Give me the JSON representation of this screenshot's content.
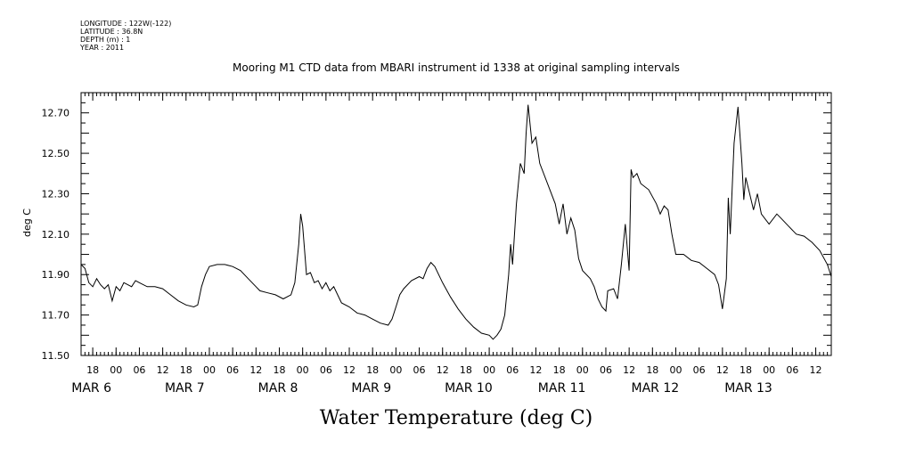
{
  "meta_lines": [
    "LONGITUDE : 122W(-122)",
    "LATITUDE : 36.8N",
    "DEPTH (m) : 1",
    "YEAR : 2011"
  ],
  "chart_data": {
    "type": "line",
    "title": "Mooring M1 CTD data from MBARI instrument id 1338 at original sampling intervals",
    "xlabel": "Water Temperature (deg C)",
    "ylabel": "deg C",
    "xlim": [
      "2011-03-05T15:00",
      "2011-03-13T16:00"
    ],
    "ylim": [
      11.5,
      12.8
    ],
    "yticks": [
      11.5,
      11.7,
      11.9,
      12.1,
      12.3,
      12.5,
      12.7
    ],
    "ytick_labels": [
      "11.50",
      "11.70",
      "11.90",
      "12.10",
      "12.30",
      "12.50",
      "12.70"
    ],
    "hour_ticks": [
      {
        "t": "2011-03-05T18:00",
        "label": "18"
      },
      {
        "t": "2011-03-06T00:00",
        "label": "00"
      },
      {
        "t": "2011-03-06T06:00",
        "label": "06"
      },
      {
        "t": "2011-03-06T12:00",
        "label": "12"
      },
      {
        "t": "2011-03-06T18:00",
        "label": "18"
      },
      {
        "t": "2011-03-07T00:00",
        "label": "00"
      },
      {
        "t": "2011-03-07T06:00",
        "label": "06"
      },
      {
        "t": "2011-03-07T12:00",
        "label": "12"
      },
      {
        "t": "2011-03-07T18:00",
        "label": "18"
      },
      {
        "t": "2011-03-08T00:00",
        "label": "00"
      },
      {
        "t": "2011-03-08T06:00",
        "label": "06"
      },
      {
        "t": "2011-03-08T12:00",
        "label": "12"
      },
      {
        "t": "2011-03-08T18:00",
        "label": "18"
      },
      {
        "t": "2011-03-09T00:00",
        "label": "00"
      },
      {
        "t": "2011-03-09T06:00",
        "label": "06"
      },
      {
        "t": "2011-03-09T12:00",
        "label": "12"
      },
      {
        "t": "2011-03-09T18:00",
        "label": "18"
      },
      {
        "t": "2011-03-10T00:00",
        "label": "00"
      },
      {
        "t": "2011-03-10T06:00",
        "label": "06"
      },
      {
        "t": "2011-03-10T12:00",
        "label": "12"
      },
      {
        "t": "2011-03-10T18:00",
        "label": "18"
      },
      {
        "t": "2011-03-11T00:00",
        "label": "00"
      },
      {
        "t": "2011-03-11T06:00",
        "label": "06"
      },
      {
        "t": "2011-03-11T12:00",
        "label": "12"
      },
      {
        "t": "2011-03-11T18:00",
        "label": "18"
      },
      {
        "t": "2011-03-12T00:00",
        "label": "00"
      },
      {
        "t": "2011-03-12T06:00",
        "label": "06"
      },
      {
        "t": "2011-03-12T12:00",
        "label": "12"
      },
      {
        "t": "2011-03-12T18:00",
        "label": "18"
      },
      {
        "t": "2011-03-13T00:00",
        "label": "00"
      },
      {
        "t": "2011-03-13T06:00",
        "label": "06"
      },
      {
        "t": "2011-03-13T12:00",
        "label": "12"
      }
    ],
    "day_labels": [
      {
        "t": "2011-03-06T00:00",
        "label": "MAR   6"
      },
      {
        "t": "2011-03-07T00:00",
        "label": "MAR   7"
      },
      {
        "t": "2011-03-08T00:00",
        "label": "MAR   8"
      },
      {
        "t": "2011-03-09T00:00",
        "label": "MAR   9"
      },
      {
        "t": "2011-03-10T00:00",
        "label": "MAR 10"
      },
      {
        "t": "2011-03-11T00:00",
        "label": "MAR 11"
      },
      {
        "t": "2011-03-12T00:00",
        "label": "MAR 12"
      },
      {
        "t": "2011-03-13T00:00",
        "label": "MAR 13"
      }
    ],
    "series": [
      {
        "points": [
          [
            "2011-03-05T15:00",
            11.95
          ],
          [
            "2011-03-05T16:00",
            11.93
          ],
          [
            "2011-03-05T17:00",
            11.86
          ],
          [
            "2011-03-05T18:00",
            11.84
          ],
          [
            "2011-03-05T19:00",
            11.88
          ],
          [
            "2011-03-05T20:00",
            11.85
          ],
          [
            "2011-03-05T21:00",
            11.83
          ],
          [
            "2011-03-05T22:00",
            11.85
          ],
          [
            "2011-03-05T23:00",
            11.77
          ],
          [
            "2011-03-06T00:00",
            11.84
          ],
          [
            "2011-03-06T01:00",
            11.82
          ],
          [
            "2011-03-06T02:00",
            11.86
          ],
          [
            "2011-03-06T03:00",
            11.85
          ],
          [
            "2011-03-06T04:00",
            11.84
          ],
          [
            "2011-03-06T05:00",
            11.87
          ],
          [
            "2011-03-06T06:00",
            11.86
          ],
          [
            "2011-03-06T08:00",
            11.84
          ],
          [
            "2011-03-06T10:00",
            11.84
          ],
          [
            "2011-03-06T12:00",
            11.83
          ],
          [
            "2011-03-06T14:00",
            11.8
          ],
          [
            "2011-03-06T16:00",
            11.77
          ],
          [
            "2011-03-06T18:00",
            11.75
          ],
          [
            "2011-03-06T20:00",
            11.74
          ],
          [
            "2011-03-06T21:00",
            11.75
          ],
          [
            "2011-03-06T22:00",
            11.84
          ],
          [
            "2011-03-06T23:00",
            11.9
          ],
          [
            "2011-03-07T00:00",
            11.94
          ],
          [
            "2011-03-07T02:00",
            11.95
          ],
          [
            "2011-03-07T04:00",
            11.95
          ],
          [
            "2011-03-07T06:00",
            11.94
          ],
          [
            "2011-03-07T08:00",
            11.92
          ],
          [
            "2011-03-07T10:00",
            11.88
          ],
          [
            "2011-03-07T12:00",
            11.84
          ],
          [
            "2011-03-07T13:00",
            11.82
          ],
          [
            "2011-03-07T15:00",
            11.81
          ],
          [
            "2011-03-07T17:00",
            11.8
          ],
          [
            "2011-03-07T19:00",
            11.78
          ],
          [
            "2011-03-07T21:00",
            11.8
          ],
          [
            "2011-03-07T22:00",
            11.86
          ],
          [
            "2011-03-07T23:00",
            12.05
          ],
          [
            "2011-03-07T23:30",
            12.2
          ],
          [
            "2011-03-08T00:00",
            12.14
          ],
          [
            "2011-03-08T01:00",
            11.9
          ],
          [
            "2011-03-08T02:00",
            11.91
          ],
          [
            "2011-03-08T03:00",
            11.86
          ],
          [
            "2011-03-08T04:00",
            11.87
          ],
          [
            "2011-03-08T05:00",
            11.83
          ],
          [
            "2011-03-08T06:00",
            11.86
          ],
          [
            "2011-03-08T07:00",
            11.82
          ],
          [
            "2011-03-08T08:00",
            11.84
          ],
          [
            "2011-03-08T10:00",
            11.76
          ],
          [
            "2011-03-08T12:00",
            11.74
          ],
          [
            "2011-03-08T14:00",
            11.71
          ],
          [
            "2011-03-08T16:00",
            11.7
          ],
          [
            "2011-03-08T18:00",
            11.68
          ],
          [
            "2011-03-08T20:00",
            11.66
          ],
          [
            "2011-03-08T22:00",
            11.65
          ],
          [
            "2011-03-08T23:00",
            11.68
          ],
          [
            "2011-03-09T00:00",
            11.74
          ],
          [
            "2011-03-09T01:00",
            11.8
          ],
          [
            "2011-03-09T02:00",
            11.83
          ],
          [
            "2011-03-09T04:00",
            11.87
          ],
          [
            "2011-03-09T06:00",
            11.89
          ],
          [
            "2011-03-09T07:00",
            11.88
          ],
          [
            "2011-03-09T08:00",
            11.93
          ],
          [
            "2011-03-09T09:00",
            11.96
          ],
          [
            "2011-03-09T10:00",
            11.94
          ],
          [
            "2011-03-09T12:00",
            11.86
          ],
          [
            "2011-03-09T14:00",
            11.79
          ],
          [
            "2011-03-09T16:00",
            11.73
          ],
          [
            "2011-03-09T18:00",
            11.68
          ],
          [
            "2011-03-09T20:00",
            11.64
          ],
          [
            "2011-03-09T22:00",
            11.61
          ],
          [
            "2011-03-10T00:00",
            11.6
          ],
          [
            "2011-03-10T01:00",
            11.58
          ],
          [
            "2011-03-10T02:00",
            11.6
          ],
          [
            "2011-03-10T03:00",
            11.63
          ],
          [
            "2011-03-10T04:00",
            11.7
          ],
          [
            "2011-03-10T05:00",
            11.9
          ],
          [
            "2011-03-10T05:30",
            12.05
          ],
          [
            "2011-03-10T06:00",
            11.95
          ],
          [
            "2011-03-10T07:00",
            12.25
          ],
          [
            "2011-03-10T08:00",
            12.45
          ],
          [
            "2011-03-10T09:00",
            12.4
          ],
          [
            "2011-03-10T09:30",
            12.6
          ],
          [
            "2011-03-10T10:00",
            12.74
          ],
          [
            "2011-03-10T11:00",
            12.55
          ],
          [
            "2011-03-10T12:00",
            12.58
          ],
          [
            "2011-03-10T13:00",
            12.45
          ],
          [
            "2011-03-10T15:00",
            12.35
          ],
          [
            "2011-03-10T17:00",
            12.25
          ],
          [
            "2011-03-10T18:00",
            12.15
          ],
          [
            "2011-03-10T19:00",
            12.25
          ],
          [
            "2011-03-10T20:00",
            12.1
          ],
          [
            "2011-03-10T21:00",
            12.18
          ],
          [
            "2011-03-10T22:00",
            12.12
          ],
          [
            "2011-03-10T23:00",
            11.98
          ],
          [
            "2011-03-11T00:00",
            11.92
          ],
          [
            "2011-03-11T02:00",
            11.88
          ],
          [
            "2011-03-11T03:00",
            11.84
          ],
          [
            "2011-03-11T04:00",
            11.78
          ],
          [
            "2011-03-11T05:00",
            11.74
          ],
          [
            "2011-03-11T06:00",
            11.72
          ],
          [
            "2011-03-11T06:30",
            11.82
          ],
          [
            "2011-03-11T08:00",
            11.83
          ],
          [
            "2011-03-11T09:00",
            11.78
          ],
          [
            "2011-03-11T10:00",
            11.95
          ],
          [
            "2011-03-11T11:00",
            12.15
          ],
          [
            "2011-03-11T12:00",
            11.92
          ],
          [
            "2011-03-11T12:30",
            12.42
          ],
          [
            "2011-03-11T13:00",
            12.38
          ],
          [
            "2011-03-11T14:00",
            12.4
          ],
          [
            "2011-03-11T15:00",
            12.35
          ],
          [
            "2011-03-11T17:00",
            12.32
          ],
          [
            "2011-03-11T19:00",
            12.25
          ],
          [
            "2011-03-11T20:00",
            12.2
          ],
          [
            "2011-03-11T21:00",
            12.24
          ],
          [
            "2011-03-11T22:00",
            12.22
          ],
          [
            "2011-03-11T23:00",
            12.1
          ],
          [
            "2011-03-12T00:00",
            12.0
          ],
          [
            "2011-03-12T02:00",
            12.0
          ],
          [
            "2011-03-12T04:00",
            11.97
          ],
          [
            "2011-03-12T06:00",
            11.96
          ],
          [
            "2011-03-12T08:00",
            11.93
          ],
          [
            "2011-03-12T10:00",
            11.9
          ],
          [
            "2011-03-12T11:00",
            11.85
          ],
          [
            "2011-03-12T12:00",
            11.73
          ],
          [
            "2011-03-12T13:00",
            11.88
          ],
          [
            "2011-03-12T13:30",
            12.28
          ],
          [
            "2011-03-12T14:00",
            12.1
          ],
          [
            "2011-03-12T15:00",
            12.55
          ],
          [
            "2011-03-12T16:00",
            12.73
          ],
          [
            "2011-03-12T17:00",
            12.45
          ],
          [
            "2011-03-12T17:30",
            12.27
          ],
          [
            "2011-03-12T18:00",
            12.38
          ],
          [
            "2011-03-12T19:00",
            12.3
          ],
          [
            "2011-03-12T20:00",
            12.22
          ],
          [
            "2011-03-12T21:00",
            12.3
          ],
          [
            "2011-03-12T22:00",
            12.2
          ],
          [
            "2011-03-13T00:00",
            12.15
          ],
          [
            "2011-03-13T02:00",
            12.2
          ],
          [
            "2011-03-13T03:00",
            12.18
          ],
          [
            "2011-03-13T05:00",
            12.14
          ],
          [
            "2011-03-13T07:00",
            12.1
          ],
          [
            "2011-03-13T09:00",
            12.09
          ],
          [
            "2011-03-13T11:00",
            12.06
          ],
          [
            "2011-03-13T13:00",
            12.02
          ],
          [
            "2011-03-13T15:00",
            11.95
          ],
          [
            "2011-03-13T16:00",
            11.89
          ]
        ]
      }
    ]
  }
}
